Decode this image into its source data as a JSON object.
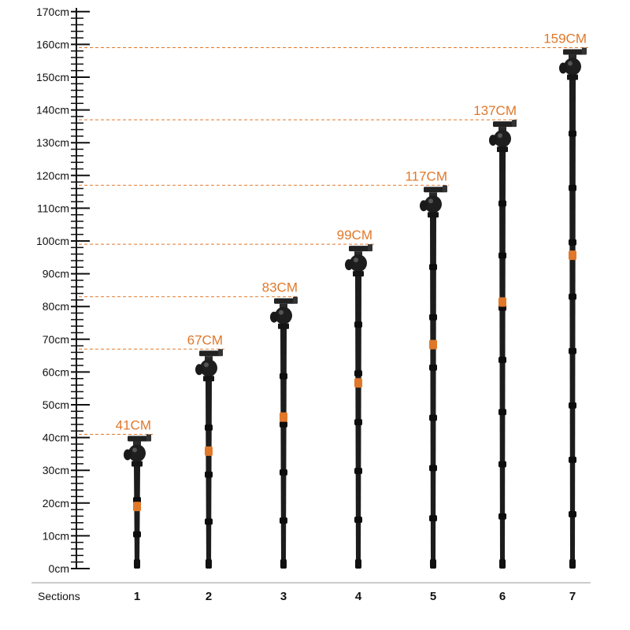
{
  "scale": {
    "unit_suffix": "cm",
    "ticks": [
      "0cm",
      "10cm",
      "20cm",
      "30cm",
      "40cm",
      "50cm",
      "60cm",
      "70cm",
      "80cm",
      "90cm",
      "100cm",
      "110cm",
      "120cm",
      "130cm",
      "140cm",
      "150cm",
      "160cm",
      "170cm"
    ],
    "tick_values": [
      0,
      10,
      20,
      30,
      40,
      50,
      60,
      70,
      80,
      90,
      100,
      110,
      120,
      130,
      140,
      150,
      160,
      170
    ]
  },
  "sections_title": "Sections",
  "accent_color": "#e0782a",
  "tripods": [
    {
      "section": "1",
      "height_label": "41CM",
      "height_cm": 41
    },
    {
      "section": "2",
      "height_label": "67CM",
      "height_cm": 67
    },
    {
      "section": "3",
      "height_label": "83CM",
      "height_cm": 83
    },
    {
      "section": "4",
      "height_label": "99CM",
      "height_cm": 99
    },
    {
      "section": "5",
      "height_label": "117CM",
      "height_cm": 117
    },
    {
      "section": "6",
      "height_label": "137CM",
      "height_cm": 137
    },
    {
      "section": "7",
      "height_label": "159CM",
      "height_cm": 159
    }
  ]
}
